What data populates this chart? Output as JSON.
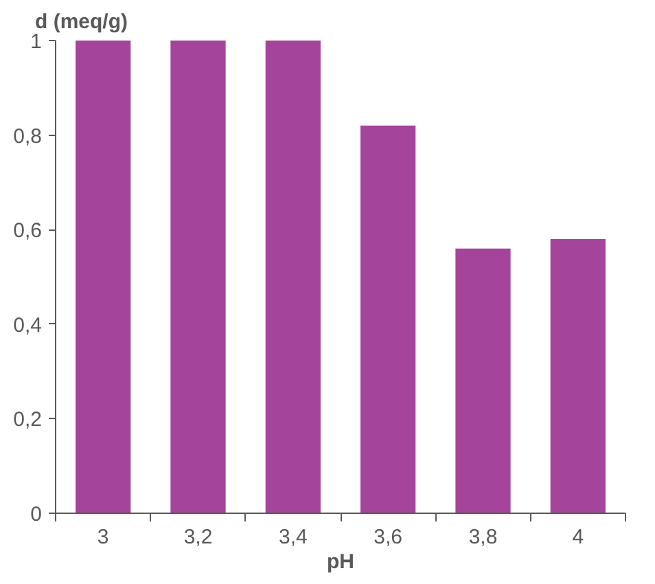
{
  "chart_data": {
    "type": "bar",
    "xlabel": "pH",
    "ylabel": "d (meq/g)",
    "categories": [
      "3",
      "3,2",
      "3,4",
      "3,6",
      "3,8",
      "4"
    ],
    "values": [
      1,
      1,
      1,
      0.82,
      0.56,
      0.58
    ],
    "color": "#a4449a",
    "ylim": [
      0,
      1
    ],
    "yticks": [
      0,
      {
        "value": 0.2,
        "label": "0,2"
      },
      {
        "value": 0.4,
        "label": "0,4"
      },
      {
        "value": 0.6,
        "label": "0,6"
      },
      {
        "value": 0.8,
        "label": "0,8"
      },
      1
    ],
    "grid": false
  }
}
